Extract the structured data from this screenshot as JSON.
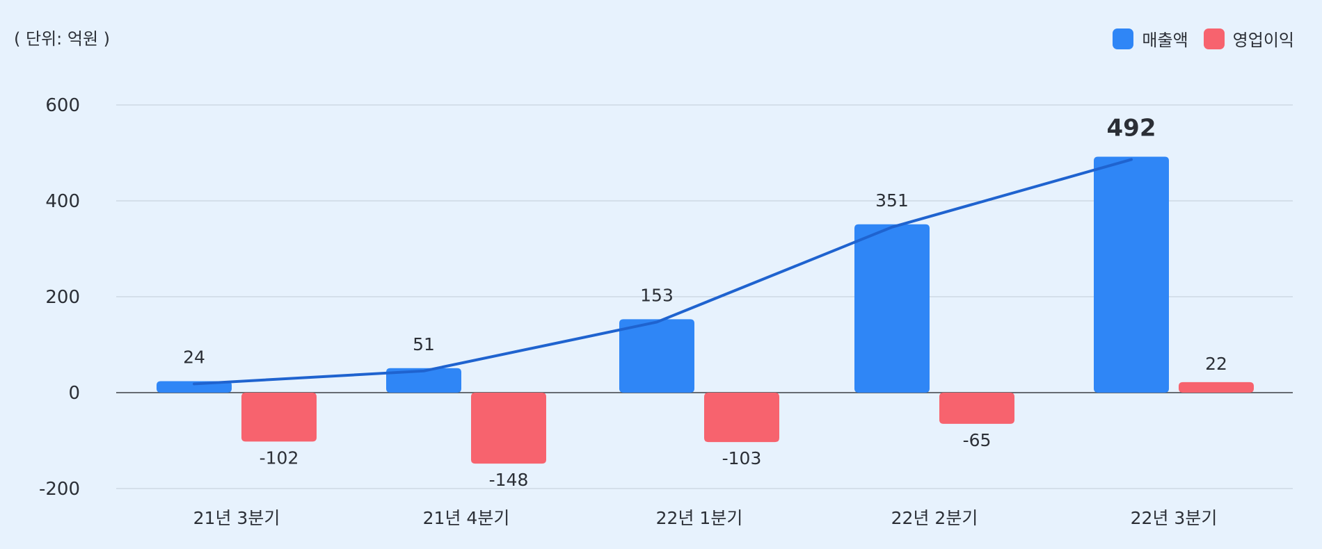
{
  "chart_data": {
    "type": "bar",
    "unit_label": "( 단위: 억원 )",
    "categories": [
      "21년 3분기",
      "21년 4분기",
      "22년 1분기",
      "22년 2분기",
      "22년 3분기"
    ],
    "series": [
      {
        "name": "매출액",
        "values": [
          24,
          51,
          153,
          351,
          492
        ],
        "color": "#2f86f6",
        "line": true
      },
      {
        "name": "영업이익",
        "values": [
          -102,
          -148,
          -103,
          -65,
          22
        ],
        "color": "#f7636e",
        "line": false
      }
    ],
    "yticks": [
      600,
      400,
      200,
      0,
      -200
    ],
    "ylim": [
      -200,
      600
    ],
    "legend_position": "top-right",
    "grid": true,
    "line_color": "#1f63cf",
    "highlight_category_index": 4
  }
}
